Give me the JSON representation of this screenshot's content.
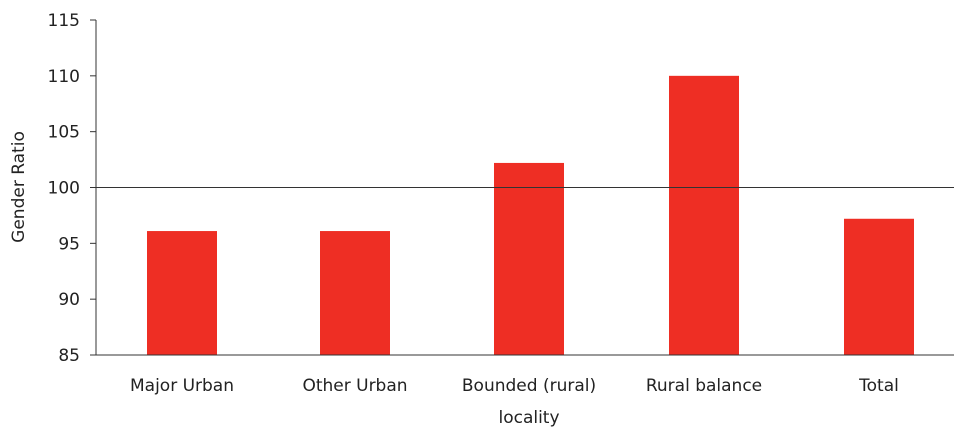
{
  "chart_data": {
    "type": "bar",
    "title": "",
    "xlabel": "locality",
    "ylabel": "Gender Ratio",
    "categories": [
      "Major Urban",
      "Other Urban",
      "Bounded (rural)",
      "Rural balance",
      "Total"
    ],
    "series": [
      {
        "values": [
          96.1,
          96.1,
          102.2,
          110.0,
          97.2
        ]
      }
    ],
    "ylim": [
      85,
      115
    ],
    "yticks": [
      85,
      90,
      95,
      100,
      105,
      110,
      115
    ],
    "reference_line": 100,
    "grid": false,
    "bar_color": "#ee2e24"
  }
}
